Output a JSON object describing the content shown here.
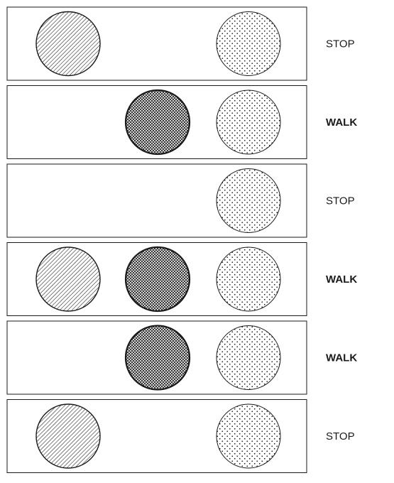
{
  "rows": [
    {
      "lights": {
        "hatched": true,
        "crosshatched": false,
        "dotted": true
      },
      "label": "STOP",
      "emphasis": false
    },
    {
      "lights": {
        "hatched": false,
        "crosshatched": true,
        "dotted": true
      },
      "label": "WALK",
      "emphasis": true
    },
    {
      "lights": {
        "hatched": false,
        "crosshatched": false,
        "dotted": true
      },
      "label": "STOP",
      "emphasis": false
    },
    {
      "lights": {
        "hatched": true,
        "crosshatched": true,
        "dotted": true
      },
      "label": "WALK",
      "emphasis": true
    },
    {
      "lights": {
        "hatched": false,
        "crosshatched": true,
        "dotted": true
      },
      "label": "WALK",
      "emphasis": true
    },
    {
      "lights": {
        "hatched": true,
        "crosshatched": false,
        "dotted": true
      },
      "label": "STOP",
      "emphasis": false
    }
  ],
  "colors": {
    "stroke": "#1a1a1a",
    "background": "#ffffff"
  }
}
